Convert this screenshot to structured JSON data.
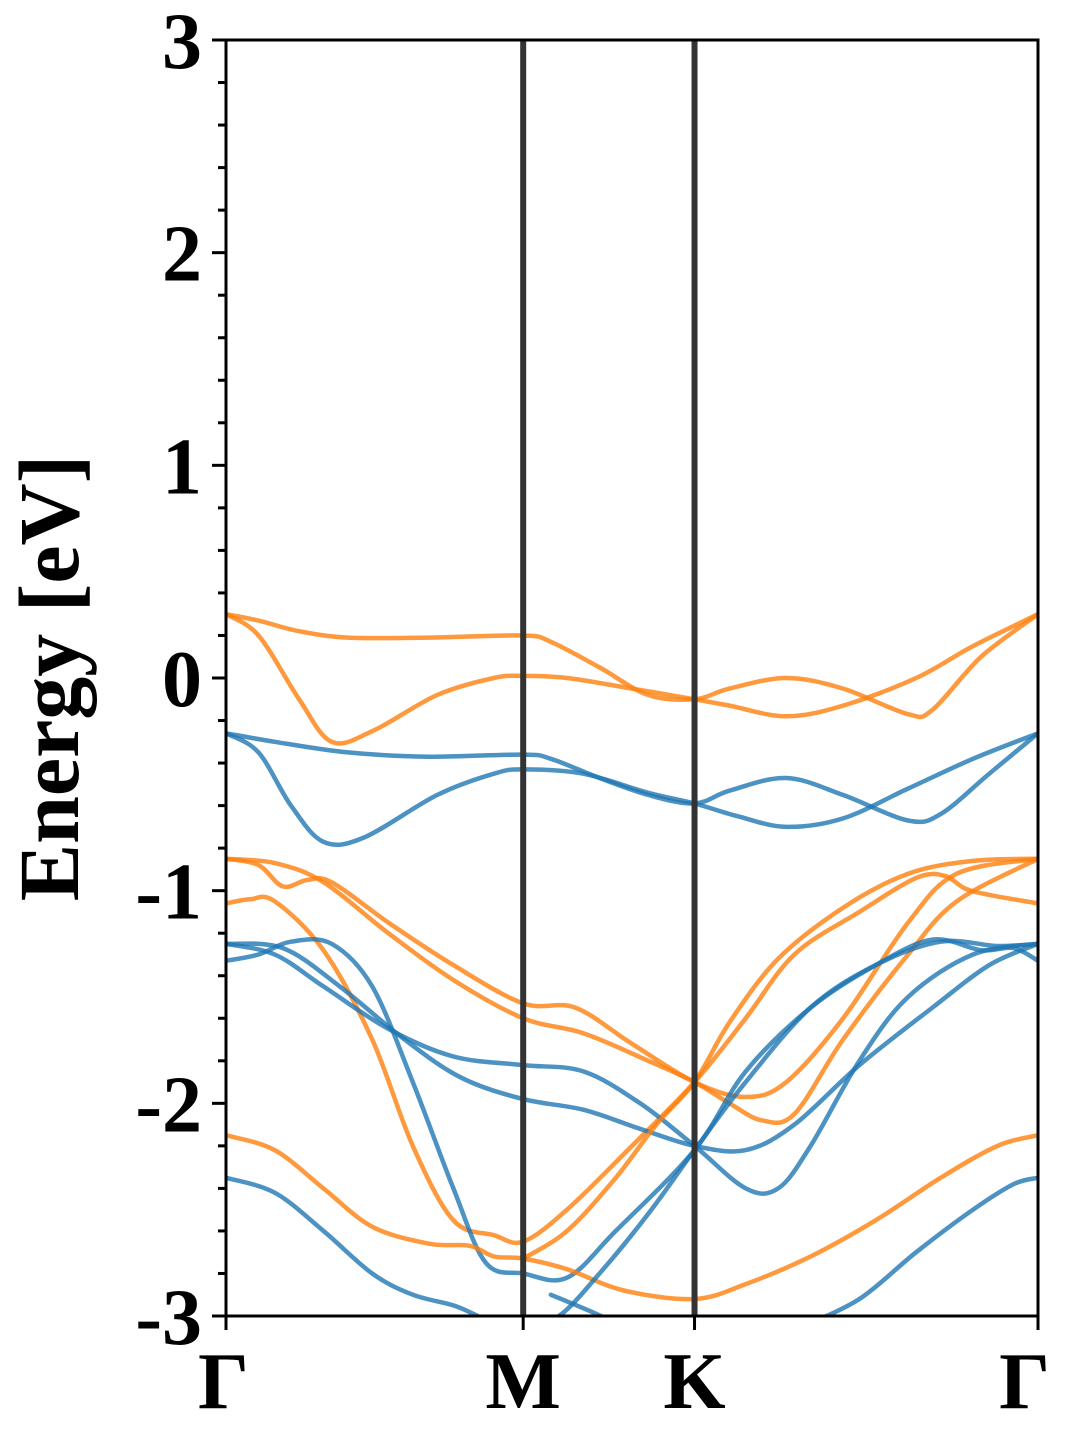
{
  "chart_data": {
    "type": "line",
    "title": "",
    "xlabel": "",
    "ylabel": "Energy [eV]",
    "ylim": [
      -3,
      3
    ],
    "xlim": [
      0,
      1
    ],
    "yticks": [
      -3,
      -2,
      -1,
      0,
      1,
      2,
      3
    ],
    "ytick_labels": [
      "-3",
      "-2",
      "-1",
      "0",
      "1",
      "2",
      "3"
    ],
    "yminor_step": 0.2,
    "kpoints": [
      {
        "label": "Γ",
        "x": 0.0
      },
      {
        "label": "M",
        "x": 0.366
      },
      {
        "label": "K",
        "x": 0.577
      },
      {
        "label": "Γ",
        "x": 1.0
      }
    ],
    "grid": false,
    "legend": "none",
    "colors": {
      "spin_up": "#1f77b4",
      "spin_down": "#ff7f0e",
      "kline": "#333333"
    },
    "series": [
      {
        "group": "spin_down",
        "values": [
          [
            0.0,
            0.3
          ],
          [
            0.04,
            0.27
          ],
          [
            0.09,
            0.22
          ],
          [
            0.15,
            0.19
          ],
          [
            0.25,
            0.19
          ],
          [
            0.366,
            0.2
          ],
          [
            0.4,
            0.17
          ],
          [
            0.46,
            0.05
          ],
          [
            0.52,
            -0.08
          ],
          [
            0.577,
            -0.1
          ],
          [
            0.62,
            -0.05
          ],
          [
            0.69,
            0.0
          ],
          [
            0.76,
            -0.05
          ],
          [
            0.84,
            -0.17
          ],
          [
            0.87,
            -0.15
          ],
          [
            0.93,
            0.1
          ],
          [
            1.0,
            0.3
          ]
        ]
      },
      {
        "group": "spin_down",
        "values": [
          [
            0.0,
            0.3
          ],
          [
            0.04,
            0.2
          ],
          [
            0.09,
            -0.1
          ],
          [
            0.13,
            -0.3
          ],
          [
            0.18,
            -0.25
          ],
          [
            0.26,
            -0.08
          ],
          [
            0.33,
            0.0
          ],
          [
            0.366,
            0.01
          ],
          [
            0.42,
            0.0
          ],
          [
            0.5,
            -0.05
          ],
          [
            0.577,
            -0.1
          ],
          [
            0.62,
            -0.13
          ],
          [
            0.69,
            -0.18
          ],
          [
            0.76,
            -0.13
          ],
          [
            0.85,
            0.0
          ],
          [
            0.92,
            0.15
          ],
          [
            1.0,
            0.3
          ]
        ]
      },
      {
        "group": "spin_up",
        "values": [
          [
            0.0,
            -0.26
          ],
          [
            0.06,
            -0.3
          ],
          [
            0.15,
            -0.35
          ],
          [
            0.25,
            -0.37
          ],
          [
            0.366,
            -0.36
          ],
          [
            0.4,
            -0.38
          ],
          [
            0.46,
            -0.47
          ],
          [
            0.52,
            -0.55
          ],
          [
            0.577,
            -0.59
          ],
          [
            0.62,
            -0.53
          ],
          [
            0.69,
            -0.47
          ],
          [
            0.76,
            -0.55
          ],
          [
            0.84,
            -0.67
          ],
          [
            0.88,
            -0.64
          ],
          [
            0.94,
            -0.45
          ],
          [
            1.0,
            -0.26
          ]
        ]
      },
      {
        "group": "spin_up",
        "values": [
          [
            0.0,
            -0.26
          ],
          [
            0.04,
            -0.35
          ],
          [
            0.08,
            -0.6
          ],
          [
            0.12,
            -0.77
          ],
          [
            0.17,
            -0.75
          ],
          [
            0.26,
            -0.55
          ],
          [
            0.33,
            -0.45
          ],
          [
            0.366,
            -0.43
          ],
          [
            0.44,
            -0.45
          ],
          [
            0.52,
            -0.54
          ],
          [
            0.577,
            -0.59
          ],
          [
            0.63,
            -0.65
          ],
          [
            0.69,
            -0.7
          ],
          [
            0.76,
            -0.66
          ],
          [
            0.84,
            -0.52
          ],
          [
            0.92,
            -0.38
          ],
          [
            1.0,
            -0.26
          ]
        ]
      },
      {
        "group": "spin_down",
        "values": [
          [
            0.0,
            -0.85
          ],
          [
            0.04,
            -0.88
          ],
          [
            0.07,
            -0.98
          ],
          [
            0.1,
            -0.95
          ],
          [
            0.13,
            -0.96
          ],
          [
            0.2,
            -1.15
          ],
          [
            0.28,
            -1.35
          ],
          [
            0.366,
            -1.53
          ],
          [
            0.43,
            -1.55
          ],
          [
            0.5,
            -1.72
          ],
          [
            0.577,
            -1.9
          ],
          [
            0.64,
            -1.97
          ],
          [
            0.69,
            -1.9
          ],
          [
            0.76,
            -1.6
          ],
          [
            0.84,
            -1.15
          ],
          [
            0.9,
            -0.92
          ],
          [
            1.0,
            -0.85
          ]
        ]
      },
      {
        "group": "spin_down",
        "values": [
          [
            0.0,
            -0.85
          ],
          [
            0.06,
            -0.87
          ],
          [
            0.12,
            -0.96
          ],
          [
            0.2,
            -1.2
          ],
          [
            0.28,
            -1.42
          ],
          [
            0.366,
            -1.6
          ],
          [
            0.44,
            -1.67
          ],
          [
            0.52,
            -1.8
          ],
          [
            0.577,
            -1.9
          ],
          [
            0.62,
            -2.0
          ],
          [
            0.66,
            -2.08
          ],
          [
            0.7,
            -2.05
          ],
          [
            0.76,
            -1.7
          ],
          [
            0.84,
            -1.3
          ],
          [
            0.9,
            -1.05
          ],
          [
            1.0,
            -0.85
          ]
        ]
      },
      {
        "group": "spin_down",
        "values": [
          [
            0.0,
            -1.06
          ],
          [
            0.03,
            -1.04
          ],
          [
            0.06,
            -1.05
          ],
          [
            0.12,
            -1.28
          ],
          [
            0.18,
            -1.7
          ],
          [
            0.23,
            -2.2
          ],
          [
            0.28,
            -2.55
          ],
          [
            0.33,
            -2.62
          ],
          [
            0.366,
            -2.65
          ],
          [
            0.42,
            -2.5
          ],
          [
            0.5,
            -2.2
          ],
          [
            0.577,
            -1.9
          ],
          [
            0.64,
            -1.6
          ],
          [
            0.7,
            -1.3
          ],
          [
            0.78,
            -1.1
          ],
          [
            0.85,
            -0.94
          ],
          [
            0.885,
            -0.93
          ],
          [
            0.91,
            -0.99
          ],
          [
            0.94,
            -1.02
          ],
          [
            1.0,
            -1.06
          ]
        ]
      },
      {
        "group": "spin_up",
        "values": [
          [
            0.0,
            -1.25
          ],
          [
            0.06,
            -1.3
          ],
          [
            0.12,
            -1.45
          ],
          [
            0.2,
            -1.65
          ],
          [
            0.28,
            -1.78
          ],
          [
            0.366,
            -1.82
          ],
          [
            0.44,
            -1.85
          ],
          [
            0.51,
            -2.0
          ],
          [
            0.577,
            -2.2
          ],
          [
            0.64,
            -2.4
          ],
          [
            0.68,
            -2.4
          ],
          [
            0.72,
            -2.2
          ],
          [
            0.78,
            -1.8
          ],
          [
            0.84,
            -1.5
          ],
          [
            0.92,
            -1.3
          ],
          [
            1.0,
            -1.25
          ]
        ]
      },
      {
        "group": "spin_up",
        "values": [
          [
            0.0,
            -1.25
          ],
          [
            0.07,
            -1.27
          ],
          [
            0.14,
            -1.45
          ],
          [
            0.22,
            -1.7
          ],
          [
            0.29,
            -1.88
          ],
          [
            0.366,
            -1.98
          ],
          [
            0.44,
            -2.03
          ],
          [
            0.51,
            -2.12
          ],
          [
            0.577,
            -2.2
          ],
          [
            0.64,
            -2.22
          ],
          [
            0.7,
            -2.1
          ],
          [
            0.78,
            -1.82
          ],
          [
            0.87,
            -1.55
          ],
          [
            0.94,
            -1.35
          ],
          [
            1.0,
            -1.25
          ]
        ]
      },
      {
        "group": "spin_up",
        "values": [
          [
            0.0,
            -1.33
          ],
          [
            0.04,
            -1.3
          ],
          [
            0.08,
            -1.24
          ],
          [
            0.13,
            -1.25
          ],
          [
            0.18,
            -1.45
          ],
          [
            0.23,
            -1.9
          ],
          [
            0.28,
            -2.4
          ],
          [
            0.32,
            -2.75
          ],
          [
            0.366,
            -2.8
          ],
          [
            0.42,
            -2.82
          ],
          [
            0.48,
            -2.6
          ],
          [
            0.577,
            -2.22
          ],
          [
            0.64,
            -1.85
          ],
          [
            0.72,
            -1.55
          ],
          [
            0.8,
            -1.35
          ],
          [
            0.87,
            -1.23
          ],
          [
            0.93,
            -1.28
          ],
          [
            0.97,
            -1.27
          ],
          [
            1.0,
            -1.33
          ]
        ]
      },
      {
        "group": "spin_down",
        "values": [
          [
            0.0,
            -2.15
          ],
          [
            0.06,
            -2.22
          ],
          [
            0.12,
            -2.4
          ],
          [
            0.18,
            -2.58
          ],
          [
            0.25,
            -2.66
          ],
          [
            0.3,
            -2.67
          ],
          [
            0.33,
            -2.72
          ],
          [
            0.366,
            -2.73
          ],
          [
            0.42,
            -2.78
          ],
          [
            0.49,
            -2.88
          ],
          [
            0.577,
            -2.92
          ],
          [
            0.64,
            -2.85
          ],
          [
            0.72,
            -2.72
          ],
          [
            0.8,
            -2.55
          ],
          [
            0.88,
            -2.35
          ],
          [
            0.95,
            -2.2
          ],
          [
            1.0,
            -2.15
          ]
        ]
      },
      {
        "group": "spin_down",
        "values": [
          [
            0.366,
            -2.73
          ],
          [
            0.42,
            -2.6
          ],
          [
            0.48,
            -2.35
          ],
          [
            0.53,
            -2.1
          ],
          [
            0.577,
            -1.9
          ],
          [
            0.62,
            -1.62
          ],
          [
            0.68,
            -1.32
          ],
          [
            0.76,
            -1.08
          ],
          [
            0.84,
            -0.92
          ],
          [
            0.92,
            -0.86
          ],
          [
            1.0,
            -0.85
          ]
        ]
      },
      {
        "group": "spin_up",
        "values": [
          [
            0.0,
            -2.35
          ],
          [
            0.06,
            -2.42
          ],
          [
            0.12,
            -2.6
          ],
          [
            0.18,
            -2.8
          ],
          [
            0.23,
            -2.9
          ],
          [
            0.28,
            -2.95
          ],
          [
            0.31,
            -3.0
          ]
        ]
      },
      {
        "group": "spin_up",
        "values": [
          [
            0.366,
            -3.05
          ],
          [
            0.41,
            -3.0
          ],
          [
            0.46,
            -2.8
          ],
          [
            0.52,
            -2.52
          ],
          [
            0.577,
            -2.22
          ],
          [
            0.64,
            -1.9
          ],
          [
            0.72,
            -1.55
          ],
          [
            0.8,
            -1.35
          ],
          [
            0.88,
            -1.24
          ],
          [
            0.95,
            -1.26
          ],
          [
            1.0,
            -1.25
          ]
        ]
      },
      {
        "group": "spin_up",
        "values": [
          [
            0.4,
            -2.9
          ],
          [
            0.45,
            -2.98
          ],
          [
            0.49,
            -3.05
          ]
        ]
      },
      {
        "group": "spin_up",
        "values": [
          [
            0.71,
            -3.05
          ],
          [
            0.78,
            -2.92
          ],
          [
            0.85,
            -2.7
          ],
          [
            0.92,
            -2.5
          ],
          [
            0.97,
            -2.38
          ],
          [
            1.0,
            -2.35
          ]
        ]
      }
    ]
  }
}
